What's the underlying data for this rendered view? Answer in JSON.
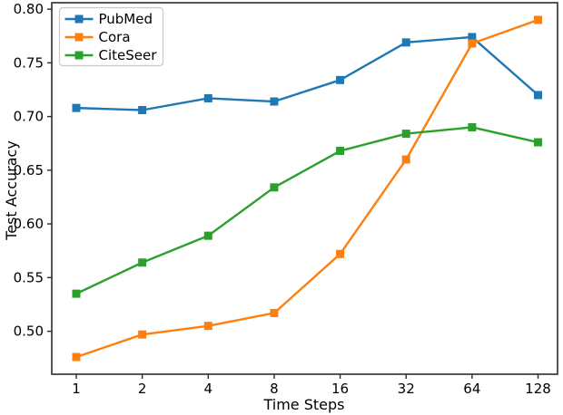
{
  "figure": {
    "background": "#ffffff",
    "axis_color": "#2b2b2b",
    "legend_border_color": "#c9c9c9"
  },
  "chart_data": {
    "type": "line",
    "x_scale": "log2-categorical",
    "categories": [
      "1",
      "2",
      "4",
      "8",
      "16",
      "32",
      "64",
      "128"
    ],
    "series": [
      {
        "name": "PubMed",
        "color": "#1f77b4",
        "marker": "square",
        "values": [
          0.708,
          0.706,
          0.717,
          0.714,
          0.734,
          0.769,
          0.774,
          0.72
        ]
      },
      {
        "name": "Cora",
        "color": "#ff7f0e",
        "marker": "square",
        "values": [
          0.476,
          0.497,
          0.505,
          0.517,
          0.572,
          0.66,
          0.768,
          0.79
        ]
      },
      {
        "name": "CiteSeer",
        "color": "#2ca02c",
        "marker": "square",
        "values": [
          0.535,
          0.564,
          0.589,
          0.634,
          0.668,
          0.684,
          0.69,
          0.676
        ]
      }
    ],
    "title": "",
    "xlabel": "Time Steps",
    "ylabel": "Test Accuracy",
    "ylim": [
      0.46,
      0.806
    ],
    "yticks": [
      "0.50",
      "0.55",
      "0.60",
      "0.65",
      "0.70",
      "0.75",
      "0.80"
    ],
    "grid": false,
    "legend": {
      "position": "upper-left",
      "entries": [
        "PubMed",
        "Cora",
        "CiteSeer"
      ]
    }
  }
}
